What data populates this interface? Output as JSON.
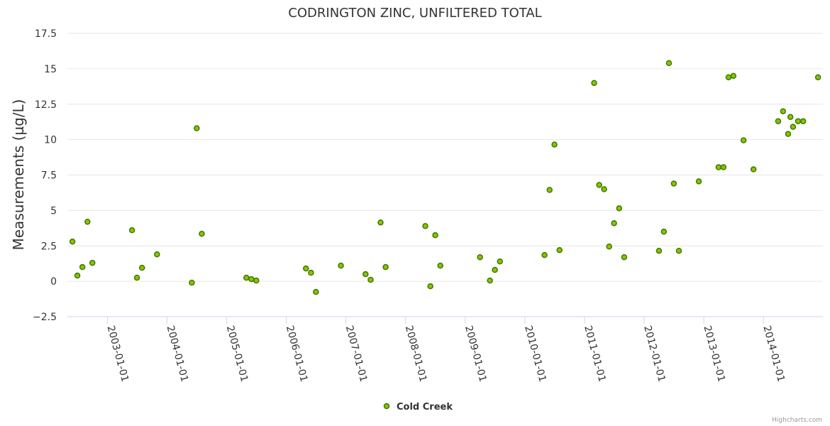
{
  "chart_data": {
    "type": "scatter",
    "title": "CODRINGTON ZINC, UNFILTERED TOTAL",
    "ylabel": "Measurements (µg/L)",
    "xlabel": "",
    "ylim": [
      -2.5,
      17.5
    ],
    "xlim": [
      "2002-05-01",
      "2014-12-31"
    ],
    "yticks": [
      -2.5,
      0,
      2.5,
      5,
      7.5,
      10,
      12.5,
      15,
      17.5
    ],
    "ytick_labels": [
      "−2.5",
      "0",
      "2.5",
      "5",
      "7.5",
      "10",
      "12.5",
      "15",
      "17.5"
    ],
    "xticks": [
      "2003-01-01",
      "2004-01-01",
      "2005-01-01",
      "2006-01-01",
      "2007-01-01",
      "2008-01-01",
      "2009-01-01",
      "2010-01-01",
      "2011-01-01",
      "2012-01-01",
      "2013-01-01",
      "2014-01-01"
    ],
    "grid": true,
    "legend_position": "bottom-center",
    "credits": "Highcharts.com",
    "colors": {
      "marker_fill": "#8bc300",
      "marker_stroke": "#3d7a00",
      "grid": "#e6e6e6",
      "axis": "#ccd6eb"
    },
    "series": [
      {
        "name": "Cold Creek",
        "points": [
          [
            "2002-06-01",
            2.8
          ],
          [
            "2002-07-01",
            0.4
          ],
          [
            "2002-08-01",
            1.0
          ],
          [
            "2002-09-01",
            4.2
          ],
          [
            "2002-10-01",
            1.3
          ],
          [
            "2003-06-01",
            3.6
          ],
          [
            "2003-07-01",
            0.25
          ],
          [
            "2003-08-01",
            0.95
          ],
          [
            "2003-11-01",
            1.9
          ],
          [
            "2004-06-01",
            -0.1
          ],
          [
            "2004-07-01",
            10.8
          ],
          [
            "2004-08-01",
            3.35
          ],
          [
            "2005-05-01",
            0.25
          ],
          [
            "2005-06-01",
            0.15
          ],
          [
            "2005-07-01",
            0.05
          ],
          [
            "2006-05-01",
            0.9
          ],
          [
            "2006-06-01",
            0.6
          ],
          [
            "2006-07-01",
            -0.75
          ],
          [
            "2006-12-01",
            1.1
          ],
          [
            "2007-05-01",
            0.5
          ],
          [
            "2007-06-01",
            0.1
          ],
          [
            "2007-08-01",
            4.15
          ],
          [
            "2007-09-01",
            1.0
          ],
          [
            "2008-05-01",
            3.9
          ],
          [
            "2008-06-01",
            -0.35
          ],
          [
            "2008-07-01",
            3.25
          ],
          [
            "2008-08-01",
            1.1
          ],
          [
            "2009-04-01",
            1.7
          ],
          [
            "2009-06-01",
            0.05
          ],
          [
            "2009-07-01",
            0.8
          ],
          [
            "2009-08-01",
            1.4
          ],
          [
            "2010-05-01",
            1.85
          ],
          [
            "2010-06-01",
            6.45
          ],
          [
            "2010-07-01",
            9.65
          ],
          [
            "2010-08-01",
            2.2
          ],
          [
            "2011-03-01",
            14.0
          ],
          [
            "2011-04-01",
            6.8
          ],
          [
            "2011-05-01",
            6.5
          ],
          [
            "2011-06-01",
            2.45
          ],
          [
            "2011-07-01",
            4.1
          ],
          [
            "2011-08-01",
            5.15
          ],
          [
            "2011-09-01",
            1.7
          ],
          [
            "2012-04-01",
            2.15
          ],
          [
            "2012-05-01",
            3.5
          ],
          [
            "2012-06-01",
            15.4
          ],
          [
            "2012-07-01",
            6.9
          ],
          [
            "2012-08-01",
            2.15
          ],
          [
            "2012-12-01",
            7.05
          ],
          [
            "2013-04-01",
            8.05
          ],
          [
            "2013-05-01",
            8.05
          ],
          [
            "2013-06-01",
            14.4
          ],
          [
            "2013-07-01",
            14.5
          ],
          [
            "2013-09-01",
            9.95
          ],
          [
            "2013-11-01",
            7.9
          ],
          [
            "2014-04-01",
            11.3
          ],
          [
            "2014-05-01",
            12.0
          ],
          [
            "2014-06-01",
            10.4
          ],
          [
            "2014-06-15",
            11.6
          ],
          [
            "2014-07-01",
            10.9
          ],
          [
            "2014-08-01",
            11.3
          ],
          [
            "2014-09-01",
            11.3
          ],
          [
            "2014-12-01",
            14.4
          ]
        ]
      }
    ]
  }
}
